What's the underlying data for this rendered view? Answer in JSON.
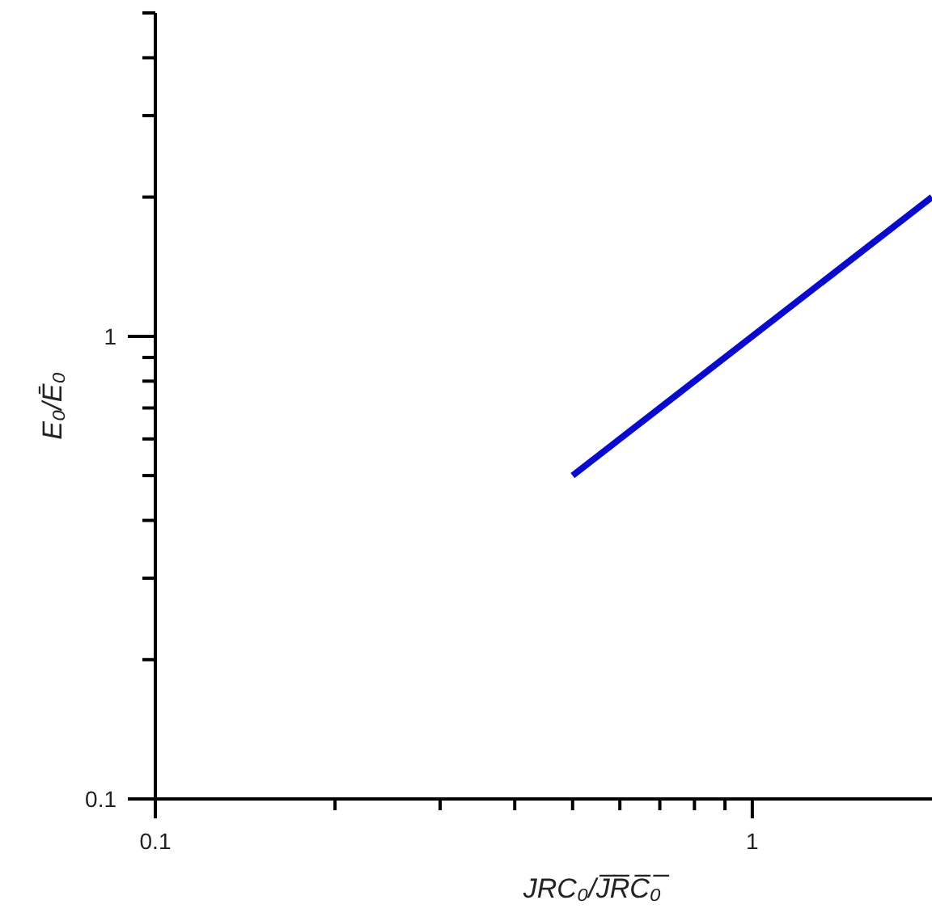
{
  "chart_data": {
    "type": "line",
    "xlabel": "JRC₀/J̅R̅C̅₀̅",
    "ylabel": "E₀/Ē₀",
    "log": "xy",
    "grid": false,
    "marker": "none",
    "line_style": "solid",
    "xlim": [
      0.1,
      2
    ],
    "ylim": [
      0.1,
      5
    ],
    "xticks": [
      0.1,
      {
        "value": 0.2,
        "label": null
      },
      {
        "value": 0.3,
        "label": null
      },
      {
        "value": 0.4,
        "label": null
      },
      {
        "value": 0.5,
        "label": null
      },
      {
        "value": 0.6,
        "label": null
      },
      {
        "value": 0.7,
        "label": null
      },
      {
        "value": 0.8,
        "label": null
      },
      {
        "value": 0.9,
        "label": null
      },
      1
    ],
    "yticks": [
      0.1,
      {
        "value": 0.2,
        "label": null
      },
      {
        "value": 0.3,
        "label": null
      },
      {
        "value": 0.4,
        "label": null
      },
      {
        "value": 0.5,
        "label": null
      },
      {
        "value": 0.6,
        "label": null
      },
      {
        "value": 0.7,
        "label": null
      },
      {
        "value": 0.8,
        "label": null
      },
      {
        "value": 0.9,
        "label": null
      },
      1,
      {
        "value": 2,
        "label": null
      },
      {
        "value": 3,
        "label": null
      },
      {
        "value": 4,
        "label": null
      },
      {
        "value": 5,
        "label": null
      }
    ],
    "series": [
      {
        "color": "#0a0acd",
        "x": [
          0.5,
          2
        ],
        "values": [
          0.5,
          2
        ]
      }
    ]
  }
}
